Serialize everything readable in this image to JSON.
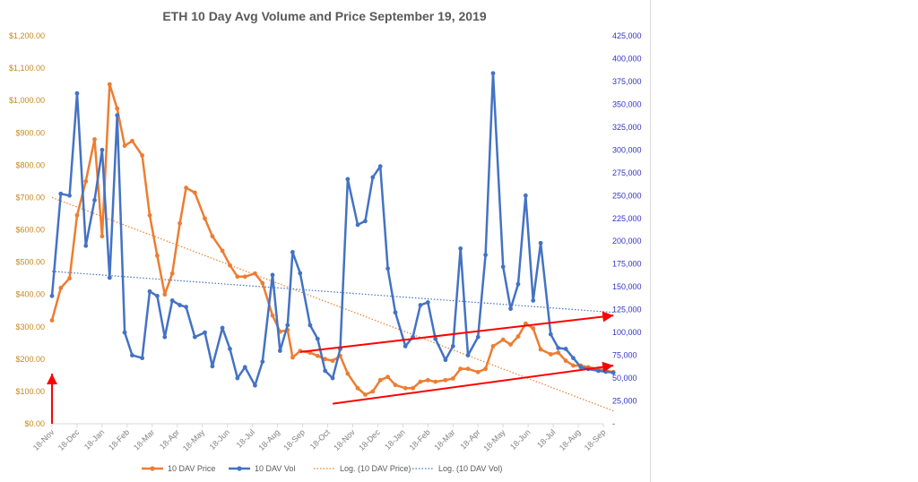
{
  "chart_data": {
    "type": "line",
    "title": "ETH 10 Day Avg Volume and Price September 19, 2019",
    "x_tick_labels": [
      "18-Nov",
      "18-Dec",
      "18-Jan",
      "18-Feb",
      "18-Mar",
      "18-Apr",
      "18-May",
      "18-Jun",
      "18-Jul",
      "18-Aug",
      "18-Sep",
      "18-Oct",
      "18-Nov",
      "18-Dec",
      "18-Jan",
      "18-Feb",
      "18-Mar",
      "18-Apr",
      "18-May",
      "18-Jun",
      "18-Jul",
      "18-Aug",
      "18-Sep"
    ],
    "y_left": {
      "min": 0,
      "max": 1200,
      "step": 100,
      "tick_labels": [
        "$0.00",
        "$100.00",
        "$200.00",
        "$300.00",
        "$400.00",
        "$500.00",
        "$600.00",
        "$700.00",
        "$800.00",
        "$900.00",
        "$1,000.00",
        "$1,100.00",
        "$1,200.00"
      ],
      "color": "#c8871c"
    },
    "y_right": {
      "min": 0,
      "max": 425000,
      "step": 25000,
      "tick_labels": [
        "-",
        "25,000",
        "50,000",
        "75,000",
        "100,000",
        "125,000",
        "150,000",
        "175,000",
        "200,000",
        "225,000",
        "250,000",
        "275,000",
        "300,000",
        "325,000",
        "350,000",
        "375,000",
        "400,000",
        "425,000"
      ],
      "color": "#3232c8"
    },
    "grid": false,
    "legend_position": "bottom",
    "series": [
      {
        "name": "10 DAV Price",
        "axis": "left",
        "color": "#ed7d31",
        "style": "line-markers",
        "x": [
          0,
          0.35,
          0.7,
          1,
          1.35,
          1.7,
          2,
          2.3,
          2.6,
          2.9,
          3.2,
          3.6,
          3.9,
          4.2,
          4.5,
          4.8,
          5.1,
          5.35,
          5.7,
          6.1,
          6.4,
          6.8,
          7.1,
          7.4,
          7.7,
          8.1,
          8.4,
          8.8,
          9.1,
          9.4,
          9.6,
          9.9,
          10.3,
          10.6,
          10.9,
          11.2,
          11.5,
          11.8,
          12.2,
          12.5,
          12.8,
          13.1,
          13.4,
          13.7,
          14.1,
          14.4,
          14.7,
          15,
          15.3,
          15.7,
          16,
          16.3,
          16.6,
          17,
          17.3,
          17.6,
          18,
          18.3,
          18.6,
          18.9,
          19.2,
          19.5,
          19.9,
          20.2,
          20.5,
          20.8,
          21.1,
          21.4,
          21.8,
          22.1,
          22.4
        ],
        "values": [
          320,
          420,
          450,
          645,
          750,
          880,
          580,
          1050,
          975,
          860,
          875,
          830,
          645,
          520,
          400,
          465,
          620,
          730,
          715,
          635,
          580,
          535,
          490,
          455,
          455,
          465,
          435,
          335,
          285,
          290,
          205,
          225,
          220,
          210,
          200,
          195,
          210,
          155,
          110,
          90,
          100,
          135,
          145,
          120,
          110,
          110,
          130,
          135,
          130,
          135,
          140,
          170,
          170,
          160,
          170,
          240,
          260,
          245,
          270,
          310,
          295,
          230,
          215,
          220,
          195,
          180,
          180,
          175,
          170,
          165,
          160
        ]
      },
      {
        "name": "10 DAV Vol",
        "axis": "right",
        "color": "#4472c4",
        "style": "line-markers",
        "x": [
          0,
          0.35,
          0.7,
          1,
          1.35,
          1.7,
          2,
          2.3,
          2.6,
          2.9,
          3.2,
          3.6,
          3.9,
          4.2,
          4.5,
          4.8,
          5.1,
          5.35,
          5.7,
          6.1,
          6.4,
          6.8,
          7.1,
          7.4,
          7.7,
          8.1,
          8.4,
          8.8,
          9.1,
          9.4,
          9.6,
          9.9,
          10.3,
          10.6,
          10.9,
          11.2,
          11.5,
          11.8,
          12.2,
          12.5,
          12.8,
          13.1,
          13.4,
          13.7,
          14.1,
          14.4,
          14.7,
          15,
          15.3,
          15.7,
          16,
          16.3,
          16.6,
          17,
          17.3,
          17.6,
          18,
          18.3,
          18.6,
          18.9,
          19.2,
          19.5,
          19.9,
          20.2,
          20.5,
          20.8,
          21.1,
          21.4,
          21.8,
          22.1,
          22.4
        ],
        "values": [
          140000,
          252000,
          250000,
          362000,
          195000,
          245000,
          300000,
          160000,
          338000,
          100000,
          75000,
          72000,
          145000,
          140000,
          95000,
          135000,
          130000,
          128000,
          95000,
          100000,
          63000,
          105000,
          82000,
          50000,
          62000,
          42000,
          68000,
          163000,
          80000,
          108000,
          188000,
          165000,
          108000,
          93000,
          58000,
          50000,
          82000,
          268000,
          218000,
          222000,
          270000,
          282000,
          170000,
          122000,
          85000,
          95000,
          130000,
          133000,
          93000,
          70000,
          85000,
          192000,
          75000,
          95000,
          185000,
          384000,
          172000,
          126000,
          153000,
          250000,
          135000,
          198000,
          98000,
          83000,
          82000,
          72000,
          62000,
          60000,
          58000,
          57000,
          56000
        ]
      },
      {
        "name": "Log. (10 DAV Price)",
        "axis": "left",
        "color": "#ed7d31",
        "style": "dotted-trend",
        "x": [
          0,
          22.4
        ],
        "values": [
          700,
          40
        ]
      },
      {
        "name": "Log. (10 DAV Vol)",
        "axis": "right",
        "color": "#4472c4",
        "style": "dotted-trend",
        "x": [
          0,
          22.4
        ],
        "values": [
          167000,
          122000
        ]
      }
    ],
    "annotations": [
      {
        "type": "arrow",
        "color": "#ff0000",
        "axis": "left",
        "x": [
          9.9,
          22.4
        ],
        "values": [
          222,
          335
        ]
      },
      {
        "type": "arrow",
        "color": "#ff0000",
        "axis": "left",
        "x": [
          11.2,
          22.4
        ],
        "values": [
          62,
          180
        ]
      },
      {
        "type": "arrow",
        "color": "#ff0000",
        "axis": "left",
        "x": [
          0,
          0
        ],
        "values": [
          0,
          155
        ]
      }
    ]
  }
}
